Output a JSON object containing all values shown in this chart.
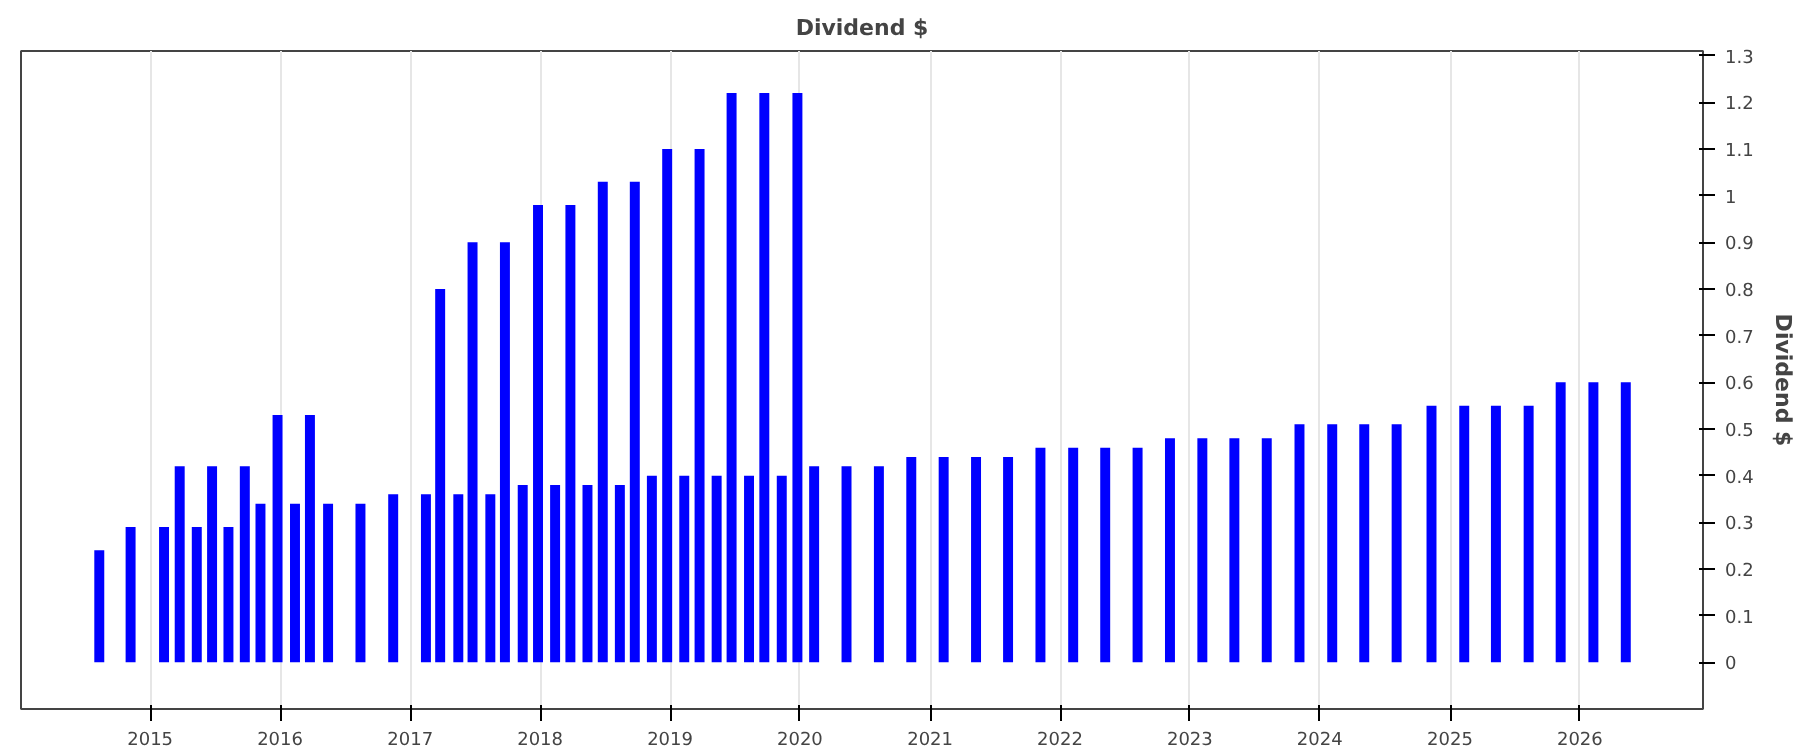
{
  "chart_data": {
    "type": "bar",
    "title": "Dividend $",
    "ylabel": "Dividend $",
    "x": [
      "2014-08-11",
      "2014-11-07",
      "2015-02-09",
      "2015-03-25",
      "2015-05-12",
      "2015-06-24",
      "2015-08-09",
      "2015-09-24",
      "2015-11-07",
      "2015-12-25",
      "2016-02-12",
      "2016-03-25",
      "2016-05-15",
      "2016-08-14",
      "2016-11-14",
      "2017-02-14",
      "2017-03-26",
      "2017-05-16",
      "2017-06-25",
      "2017-08-14",
      "2017-09-24",
      "2017-11-13",
      "2017-12-26",
      "2018-02-12",
      "2018-03-27",
      "2018-05-14",
      "2018-06-26",
      "2018-08-13",
      "2018-09-24",
      "2018-11-11",
      "2018-12-24",
      "2019-02-10",
      "2019-03-25",
      "2019-05-12",
      "2019-06-23",
      "2019-08-11",
      "2019-09-23",
      "2019-11-11",
      "2019-12-25",
      "2020-02-10",
      "2020-05-11",
      "2020-08-10",
      "2020-11-09",
      "2021-02-08",
      "2021-05-10",
      "2021-08-08",
      "2021-11-07",
      "2022-02-07",
      "2022-05-08",
      "2022-08-07",
      "2022-11-06",
      "2023-02-05",
      "2023-05-06",
      "2023-08-05",
      "2023-11-05",
      "2024-02-05",
      "2024-05-05",
      "2024-08-04",
      "2024-11-10",
      "2025-02-10",
      "2025-05-10",
      "2025-08-10",
      "2025-11-08",
      "2026-02-08",
      "2026-05-10"
    ],
    "series": [
      {
        "color": "#0000ff",
        "values": [
          0.24,
          0.29,
          0.29,
          0.42,
          0.29,
          0.42,
          0.29,
          0.42,
          0.34,
          0.53,
          0.34,
          0.53,
          0.34,
          0.34,
          0.36,
          0.36,
          0.8,
          0.36,
          0.9,
          0.36,
          0.9,
          0.38,
          0.98,
          0.38,
          0.98,
          0.38,
          1.03,
          0.38,
          1.03,
          0.4,
          1.1,
          0.4,
          1.1,
          0.4,
          1.22,
          0.4,
          1.22,
          0.4,
          1.22,
          0.42,
          0.42,
          0.42,
          0.44,
          0.44,
          0.44,
          0.44,
          0.46,
          0.46,
          0.46,
          0.46,
          0.48,
          0.48,
          0.48,
          0.48,
          0.51,
          0.51,
          0.51,
          0.51,
          0.55,
          0.55,
          0.55,
          0.55,
          0.6,
          0.6,
          0.6
        ]
      }
    ],
    "xlim": [
      "2014-01-03",
      "2026-12-13"
    ],
    "xticks": [
      "2015",
      "2016",
      "2017",
      "2018",
      "2019",
      "2020",
      "2021",
      "2022",
      "2023",
      "2024",
      "2025",
      "2026"
    ],
    "ylim": [
      -0.1,
      1.31
    ],
    "yticks": [
      0,
      0.1,
      0.2,
      0.3,
      0.4,
      0.5,
      0.6,
      0.7,
      0.8,
      0.9,
      1,
      1.1,
      1.2,
      1.3
    ],
    "grid": "x"
  }
}
